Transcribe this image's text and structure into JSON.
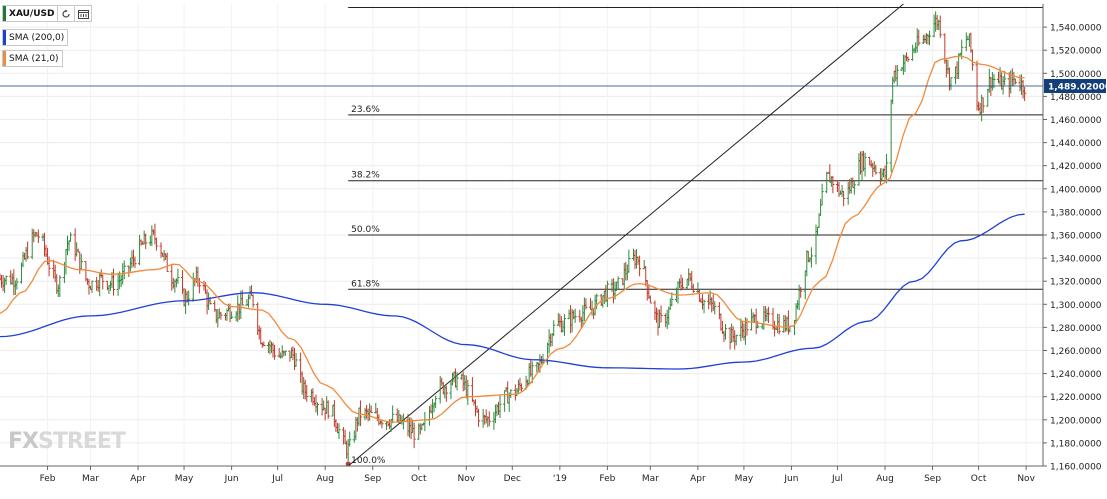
{
  "chart_data": {
    "type": "ohlc",
    "symbol": "XAU/USD",
    "indicators": [
      {
        "name": "SMA (200,0)",
        "color": "#1f3fd9"
      },
      {
        "name": "SMA (21,0)",
        "color": "#f28a3a"
      }
    ],
    "current_price": "1,489.02000",
    "price_colors": {
      "up": "#2e8b3d",
      "down": "#c0392b",
      "last_label_bg": "#123e7a"
    },
    "x_start": "2018-01-01",
    "x_end": "2019-11-12",
    "ylim": [
      1160,
      1560
    ],
    "y_ticks": [
      1160,
      1180,
      1200,
      1220,
      1240,
      1260,
      1280,
      1300,
      1320,
      1340,
      1360,
      1380,
      1400,
      1420,
      1440,
      1460,
      1480,
      1500,
      1520,
      1540
    ],
    "x_ticks": [
      {
        "label": "Feb",
        "date": "2018-02-01"
      },
      {
        "label": "Mar",
        "date": "2018-03-01"
      },
      {
        "label": "Apr",
        "date": "2018-04-01"
      },
      {
        "label": "May",
        "date": "2018-05-01"
      },
      {
        "label": "Jun",
        "date": "2018-06-01"
      },
      {
        "label": "Jul",
        "date": "2018-07-01"
      },
      {
        "label": "Aug",
        "date": "2018-08-01"
      },
      {
        "label": "Sep",
        "date": "2018-09-01"
      },
      {
        "label": "Oct",
        "date": "2018-10-01"
      },
      {
        "label": "Nov",
        "date": "2018-11-01"
      },
      {
        "label": "Dec",
        "date": "2018-12-01"
      },
      {
        "label": "'19",
        "date": "2019-01-01"
      },
      {
        "label": "Feb",
        "date": "2019-02-01"
      },
      {
        "label": "Mar",
        "date": "2019-03-01"
      },
      {
        "label": "Apr",
        "date": "2019-04-01"
      },
      {
        "label": "May",
        "date": "2019-05-01"
      },
      {
        "label": "Jun",
        "date": "2019-06-01"
      },
      {
        "label": "Jul",
        "date": "2019-07-01"
      },
      {
        "label": "Aug",
        "date": "2019-08-01"
      },
      {
        "label": "Sep",
        "date": "2019-09-01"
      },
      {
        "label": "Oct",
        "date": "2019-10-01"
      },
      {
        "label": "Nov",
        "date": "2019-11-01"
      }
    ],
    "fibonacci": {
      "start_date": "2018-08-16",
      "levels": [
        {
          "label": "23.6%",
          "price": 1464
        },
        {
          "label": "38.2%",
          "price": 1407
        },
        {
          "label": "50.0%",
          "price": 1360
        },
        {
          "label": "61.8%",
          "price": 1313
        },
        {
          "label": "100.0%",
          "price": 1160
        }
      ],
      "top_price": 1557
    },
    "trendline": {
      "start": {
        "date": "2018-08-16",
        "price": 1160
      },
      "end": {
        "date": "2019-08-13",
        "price": 1560
      }
    },
    "price_anchors": [
      [
        "2018-01-01",
        1322
      ],
      [
        "2018-01-10",
        1322
      ],
      [
        "2018-01-25",
        1360
      ],
      [
        "2018-02-08",
        1318
      ],
      [
        "2018-02-15",
        1355
      ],
      [
        "2018-03-01",
        1318
      ],
      [
        "2018-03-08",
        1322
      ],
      [
        "2018-03-15",
        1318
      ],
      [
        "2018-04-11",
        1358
      ],
      [
        "2018-04-25",
        1322
      ],
      [
        "2018-05-01",
        1305
      ],
      [
        "2018-05-10",
        1322
      ],
      [
        "2018-05-21",
        1290
      ],
      [
        "2018-06-07",
        1298
      ],
      [
        "2018-06-14",
        1305
      ],
      [
        "2018-06-21",
        1270
      ],
      [
        "2018-07-03",
        1255
      ],
      [
        "2018-07-10",
        1257
      ],
      [
        "2018-07-19",
        1225
      ],
      [
        "2018-08-03",
        1210
      ],
      [
        "2018-08-16",
        1175
      ],
      [
        "2018-08-24",
        1205
      ],
      [
        "2018-09-14",
        1200
      ],
      [
        "2018-10-01",
        1188
      ],
      [
        "2018-10-15",
        1228
      ],
      [
        "2018-10-26",
        1235
      ],
      [
        "2018-11-13",
        1200
      ],
      [
        "2018-11-30",
        1222
      ],
      [
        "2018-12-14",
        1240
      ],
      [
        "2018-12-31",
        1283
      ],
      [
        "2019-01-17",
        1293
      ],
      [
        "2019-02-04",
        1312
      ],
      [
        "2019-02-20",
        1340
      ],
      [
        "2019-03-07",
        1285
      ],
      [
        "2019-03-25",
        1322
      ],
      [
        "2019-04-08",
        1300
      ],
      [
        "2019-04-23",
        1272
      ],
      [
        "2019-05-10",
        1287
      ],
      [
        "2019-05-30",
        1282
      ],
      [
        "2019-06-14",
        1345
      ],
      [
        "2019-06-25",
        1410
      ],
      [
        "2019-07-05",
        1395
      ],
      [
        "2019-07-19",
        1425
      ],
      [
        "2019-08-01",
        1412
      ],
      [
        "2019-08-07",
        1500
      ],
      [
        "2019-08-13",
        1510
      ],
      [
        "2019-08-23",
        1525
      ],
      [
        "2019-09-04",
        1545
      ],
      [
        "2019-09-13",
        1495
      ],
      [
        "2019-09-24",
        1530
      ],
      [
        "2019-10-01",
        1472
      ],
      [
        "2019-10-10",
        1495
      ],
      [
        "2019-10-18",
        1490
      ],
      [
        "2019-10-25",
        1495
      ],
      [
        "2019-10-31",
        1489
      ]
    ],
    "sma21_anchors": [
      [
        "2018-01-01",
        1292
      ],
      [
        "2018-01-15",
        1310
      ],
      [
        "2018-02-01",
        1338
      ],
      [
        "2018-02-22",
        1330
      ],
      [
        "2018-03-15",
        1326
      ],
      [
        "2018-04-12",
        1330
      ],
      [
        "2018-04-26",
        1335
      ],
      [
        "2018-05-10",
        1320
      ],
      [
        "2018-06-01",
        1298
      ],
      [
        "2018-06-21",
        1295
      ],
      [
        "2018-07-10",
        1270
      ],
      [
        "2018-08-01",
        1230
      ],
      [
        "2018-08-23",
        1205
      ],
      [
        "2018-09-14",
        1198
      ],
      [
        "2018-10-08",
        1200
      ],
      [
        "2018-11-01",
        1220
      ],
      [
        "2018-12-03",
        1222
      ],
      [
        "2019-01-02",
        1262
      ],
      [
        "2019-02-01",
        1305
      ],
      [
        "2019-02-21",
        1318
      ],
      [
        "2019-03-20",
        1308
      ],
      [
        "2019-04-10",
        1310
      ],
      [
        "2019-05-01",
        1285
      ],
      [
        "2019-05-31",
        1280
      ],
      [
        "2019-06-20",
        1320
      ],
      [
        "2019-07-10",
        1375
      ],
      [
        "2019-08-01",
        1405
      ],
      [
        "2019-08-20",
        1465
      ],
      [
        "2019-09-05",
        1512
      ],
      [
        "2019-09-20",
        1515
      ],
      [
        "2019-10-01",
        1508
      ],
      [
        "2019-10-31",
        1496
      ]
    ],
    "sma200_anchors": [
      [
        "2018-01-01",
        1272
      ],
      [
        "2018-03-01",
        1290
      ],
      [
        "2018-05-01",
        1303
      ],
      [
        "2018-06-15",
        1310
      ],
      [
        "2018-08-01",
        1300
      ],
      [
        "2018-09-15",
        1290
      ],
      [
        "2018-11-01",
        1265
      ],
      [
        "2018-12-15",
        1252
      ],
      [
        "2019-02-01",
        1245
      ],
      [
        "2019-03-20",
        1244
      ],
      [
        "2019-05-01",
        1250
      ],
      [
        "2019-06-15",
        1262
      ],
      [
        "2019-07-20",
        1285
      ],
      [
        "2019-08-20",
        1320
      ],
      [
        "2019-09-20",
        1355
      ],
      [
        "2019-10-31",
        1378
      ]
    ]
  }
}
